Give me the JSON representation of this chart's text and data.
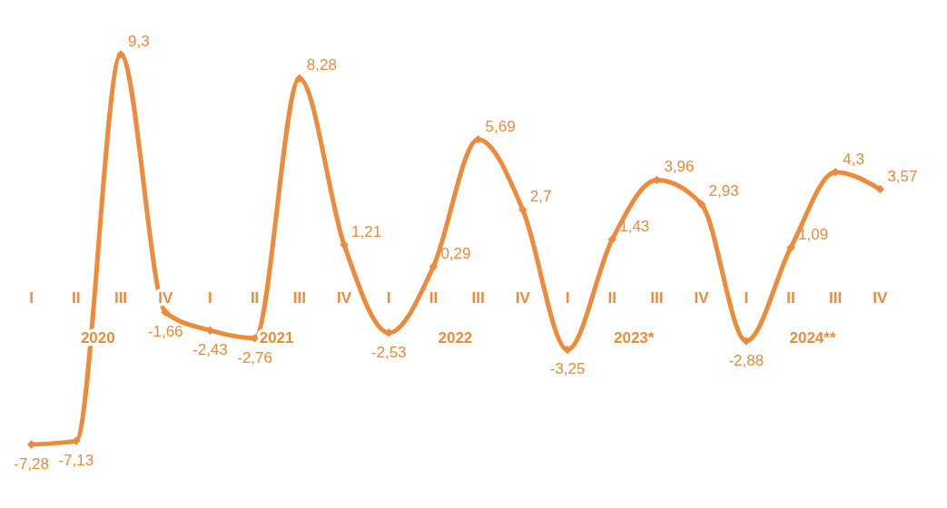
{
  "chart_data": {
    "type": "line",
    "categories": [
      "I",
      "II",
      "III",
      "IV",
      "I",
      "II",
      "III",
      "IV",
      "I",
      "II",
      "III",
      "IV",
      "I",
      "II",
      "III",
      "IV",
      "I",
      "II",
      "III",
      "IV"
    ],
    "series": [
      {
        "color": "#ed8b3a",
        "values": [
          -7.28,
          -7.13,
          9.3,
          -1.66,
          -2.43,
          -2.76,
          8.28,
          1.21,
          -2.53,
          0.29,
          5.69,
          2.7,
          -3.25,
          1.43,
          3.96,
          2.93,
          -2.88,
          1.09,
          4.3,
          3.57
        ],
        "value_labels": [
          "-7,28",
          "-7,13",
          "9,3",
          "-1,66",
          "-2,43",
          "-2,76",
          "8,28",
          "1,21",
          "-2,53",
          "0,29",
          "5,69",
          "2,7",
          "-3,25",
          "1,43",
          "3,96",
          "2,93",
          "-2,88",
          "1,09",
          "4,3",
          "3,57"
        ]
      }
    ],
    "annotations": [
      "2020",
      "2021",
      "2022",
      "2023*",
      "2024**"
    ],
    "marker": "diamond",
    "line_style": "solid",
    "grid": false
  }
}
